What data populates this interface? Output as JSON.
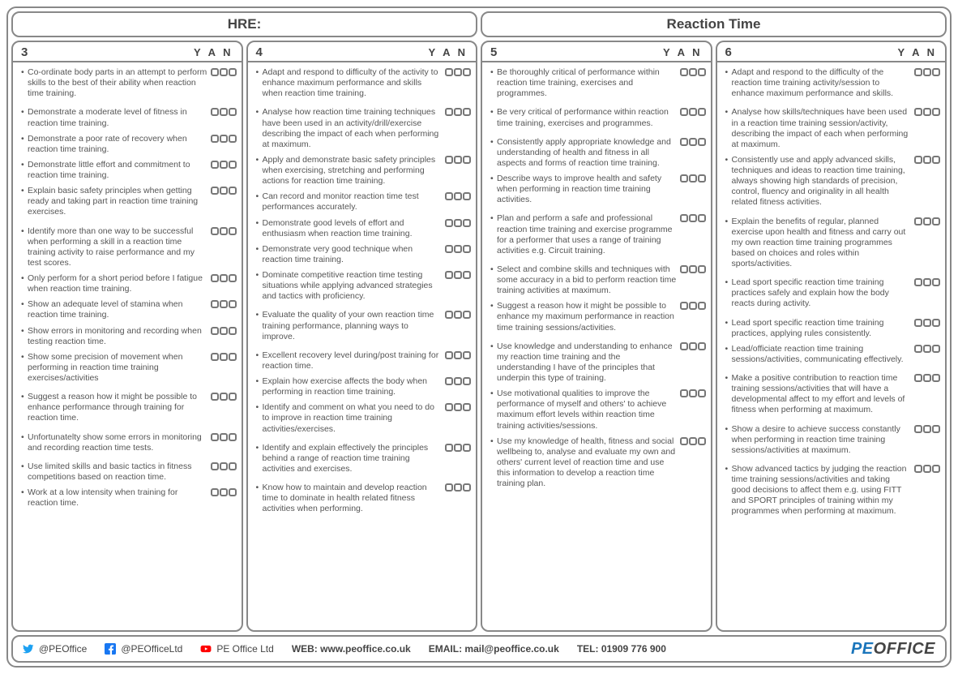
{
  "header": {
    "left": "HRE:",
    "right": "Reaction Time"
  },
  "yan_label": "Y A N",
  "columns": [
    {
      "num": "3",
      "items": [
        {
          "t": "Co-ordinate body parts in an attempt to perform skills to the best of their ability when reaction time training.",
          "s": false
        },
        {
          "t": "Demonstrate a moderate level of fitness in reaction time training.",
          "s": true
        },
        {
          "t": "Demonstrate a poor rate of recovery when reaction time training.",
          "s": false
        },
        {
          "t": "Demonstrate little effort and commitment to reaction time training.",
          "s": false
        },
        {
          "t": "Explain basic safety principles when getting ready and taking part in reaction time training exercises.",
          "s": false
        },
        {
          "t": "Identify more than one way to be successful when performing a skill in a reaction time training activity to raise performance and my test scores.",
          "s": true
        },
        {
          "t": "Only perform for a short period before I fatigue when reaction time training.",
          "s": false
        },
        {
          "t": "Show an adequate level of stamina when reaction time training.",
          "s": false
        },
        {
          "t": "Show errors in monitoring and recording when testing reaction time.",
          "s": false
        },
        {
          "t": "Show some precision of movement when performing in reaction time training exercises/activities",
          "s": false
        },
        {
          "t": "Suggest a reason how it might be possible to enhance performance through training for reaction time.",
          "s": true
        },
        {
          "t": "Unfortunatelty show some errors in monitoring and recording reaction time tests.",
          "s": true
        },
        {
          "t": "Use limited skills and basic tactics in fitness competitions based on reaction time.",
          "s": true
        },
        {
          "t": "Work at a low intensity when training for reaction time.",
          "s": false
        }
      ]
    },
    {
      "num": "4",
      "items": [
        {
          "t": "Adapt and respond to difficulty of the activity to enhance maximum performance and skills when reaction time training.",
          "s": false
        },
        {
          "t": "Analyse how reaction time training techniques have been used in an activity/drill/exercise describing the impact of each when performing at maximum.",
          "s": true
        },
        {
          "t": "Apply and demonstrate basic safety principles when exercising, stretching and performing actions for reaction time training.",
          "s": false
        },
        {
          "t": "Can record and monitor reaction time test performances accurately.",
          "s": false
        },
        {
          "t": "Demonstrate good levels of effort and enthusiasm when reaction time training.",
          "s": false
        },
        {
          "t": "Demonstrate very good technique when reaction time training.",
          "s": false
        },
        {
          "t": "Dominate competitive reaction time testing situations while applying advanced strategies and tactics with proficiency.",
          "s": false
        },
        {
          "t": "Evaluate the quality of your own reaction time training performance, planning ways to improve.",
          "s": true
        },
        {
          "t": "Excellent recovery level during/post training for reaction time.",
          "s": true
        },
        {
          "t": "Explain how exercise affects the body when performing in reaction time training.",
          "s": false
        },
        {
          "t": "Identify and comment on what you need to do to improve in reaction time training activities/exercises.",
          "s": false
        },
        {
          "t": "Identify and explain effectively the principles behind a range of reaction time training activities and exercises.",
          "s": true
        },
        {
          "t": "Know how to maintain and develop reaction time to dominate in health related fitness activities when performing.",
          "s": true
        }
      ]
    },
    {
      "num": "5",
      "items": [
        {
          "t": "Be thoroughly critical of performance within reaction time training, exercises and programmes.",
          "s": false
        },
        {
          "t": "Be very critical of performance within reaction time training, exercises and programmes.",
          "s": true
        },
        {
          "t": "Consistently apply appropriate knowledge and understanding of health and fitness in all aspects and forms of reaction time training.",
          "s": true
        },
        {
          "t": "Describe ways to improve health and safety when performing in reaction time training activities.",
          "s": false
        },
        {
          "t": "Plan and perform a safe and professional reaction time training and exercise programme for a performer that uses a range of training activities e.g. Circuit training.",
          "s": true
        },
        {
          "t": "Select and combine skills and techniques with some accuracy in a bid to perform reaction time training activities at maximum.",
          "s": true
        },
        {
          "t": "Suggest a reason how it might be possible to enhance my maximum performance in reaction time training sessions/activities.",
          "s": false
        },
        {
          "t": "Use knowledge and understanding to enhance my reaction time training and the understanding I have of the principles that underpin this type of training.",
          "s": true
        },
        {
          "t": "Use motivational qualities to improve the performance of myself and others' to achieve maximum effort levels within reaction time training activities/sessions.",
          "s": false
        },
        {
          "t": "Use my knowledge of health, fitness and social wellbeing to, analyse and evaluate my own and others' current level of reaction time and use this information to develop a reaction time training plan.",
          "s": false
        }
      ]
    },
    {
      "num": "6",
      "items": [
        {
          "t": "Adapt and respond to the difficulty of the reaction time training activity/session to enhance maximum performance and skills.",
          "s": false
        },
        {
          "t": "Analyse how skills/techniques have been used in a reaction time training session/activity, describing the impact of each when performing at maximum.",
          "s": true
        },
        {
          "t": "Consistently use and apply advanced skills, techniques and ideas to reaction time training, always showing high standards of precision, control, fluency and originality in all health related fitness activities.",
          "s": false
        },
        {
          "t": "Explain the benefits of regular, planned exercise upon health and fitness and carry out my own reaction time training programmes based on choices and roles within sports/activities.",
          "s": true
        },
        {
          "t": "Lead sport specific reaction time training practices safely and explain how the body reacts during activity.",
          "s": true
        },
        {
          "t": "Lead sport specific reaction time training practices, applying rules consistently.",
          "s": true
        },
        {
          "t": "Lead/officiate reaction time training sessions/activities, communicating effectively.",
          "s": false
        },
        {
          "t": "Make a positive contribution to reaction time training sessions/activities that will have a developmental affect to my effort and levels of fitness when performing at maximum.",
          "s": true
        },
        {
          "t": "Show a desire to achieve success constantly when performing in reaction time training sessions/activities at maximum.",
          "s": true
        },
        {
          "t": "Show advanced tactics by judging the reaction time training sessions/activities and taking good decisions to affect them e.g. using FITT and SPORT principles of training within my programmes when performing at maximum.",
          "s": true
        }
      ]
    }
  ],
  "footer": {
    "twitter": "@PEOffice",
    "facebook": "@PEOfficeLtd",
    "youtube": "PE Office Ltd",
    "web_label": "WEB:",
    "web": "www.peoffice.co.uk",
    "email_label": "EMAIL:",
    "email": "mail@peoffice.co.uk",
    "tel_label": "TEL:",
    "tel": "01909 776 900",
    "logo_pe": "PE",
    "logo_office": "OFFICE"
  },
  "colors": {
    "border": "#888888",
    "text": "#555555",
    "twitter": "#1da1f2",
    "facebook": "#1877f2",
    "youtube": "#ff0000",
    "logo_blue": "#1a75bb"
  }
}
